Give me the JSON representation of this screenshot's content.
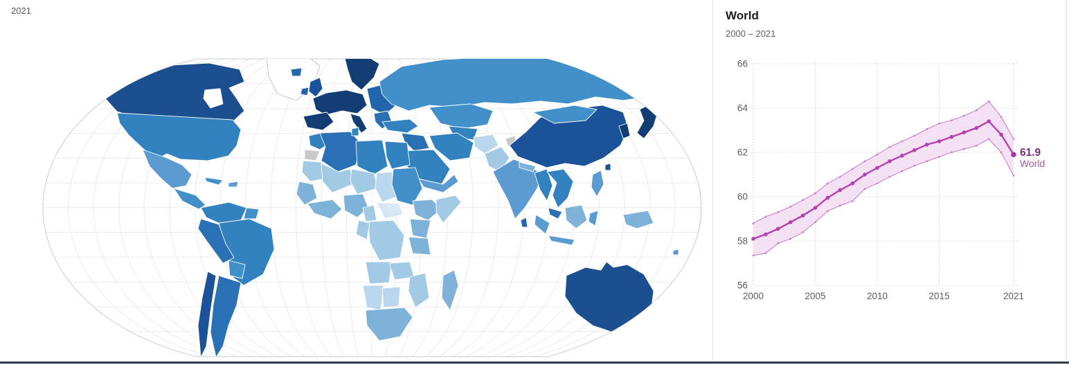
{
  "map": {
    "year_label": "2021",
    "palette": {
      "l1": "#d8e7f5",
      "l2": "#bad7ed",
      "l3": "#a3cae4",
      "l4": "#7fb2d9",
      "m1": "#5b9bd1",
      "m2": "#4190ca",
      "m3": "#3182be",
      "m4": "#2a70b5",
      "d1": "#2166ac",
      "d2": "#1b5299",
      "d3": "#1b4f8f",
      "d4": "#113c74",
      "nodata": "#c9c9c9",
      "ocean": "#ffffff",
      "graticule": "#ebebeb",
      "outline": "#cfcfcf"
    }
  },
  "chart_panel": {
    "title": "World",
    "subtitle": "2000 – 2021",
    "end_label_value": "61.9",
    "end_label_entity": "World",
    "colors": {
      "line": "#b240ae",
      "dot": "#a636a6",
      "band_fill": "#f4e2f4",
      "band_edge": "#cd7fcd",
      "grid": "#cfcfcf",
      "tick_text": "#5b5b5b",
      "label_value": "#7c2d7c",
      "label_entity": "#a2559c"
    },
    "bottom_bar_color": "#2d3c4e"
  },
  "chart_data": {
    "type": "line",
    "title": "World",
    "subtitle": "2000 – 2021",
    "xlabel": "",
    "ylabel": "",
    "ylim": [
      56,
      66
    ],
    "yticks": [
      56,
      58,
      60,
      62,
      64,
      66
    ],
    "xticks": [
      2000,
      2005,
      2010,
      2015,
      2021
    ],
    "grid": true,
    "legend_position": "end-of-line",
    "x": [
      2000,
      2001,
      2002,
      2003,
      2004,
      2005,
      2006,
      2007,
      2008,
      2009,
      2010,
      2011,
      2012,
      2013,
      2014,
      2015,
      2016,
      2017,
      2018,
      2019,
      2020,
      2021
    ],
    "series": [
      {
        "name": "World",
        "values": [
          58.1,
          58.3,
          58.55,
          58.85,
          59.15,
          59.5,
          59.95,
          60.3,
          60.6,
          61.0,
          61.3,
          61.6,
          61.85,
          62.1,
          62.35,
          62.5,
          62.7,
          62.9,
          63.1,
          63.4,
          62.8,
          61.9
        ]
      },
      {
        "name": "upper bound",
        "values": [
          58.8,
          59.1,
          59.3,
          59.55,
          59.85,
          60.15,
          60.6,
          60.9,
          61.25,
          61.6,
          61.9,
          62.25,
          62.5,
          62.75,
          63.05,
          63.3,
          63.45,
          63.65,
          63.9,
          64.3,
          63.6,
          62.6
        ]
      },
      {
        "name": "lower bound",
        "values": [
          57.35,
          57.45,
          57.9,
          58.1,
          58.4,
          58.85,
          59.35,
          59.6,
          59.8,
          60.35,
          60.6,
          60.9,
          61.15,
          61.4,
          61.6,
          61.8,
          62.0,
          62.15,
          62.3,
          62.6,
          62.0,
          60.95
        ]
      }
    ],
    "end_label": "61.9"
  }
}
